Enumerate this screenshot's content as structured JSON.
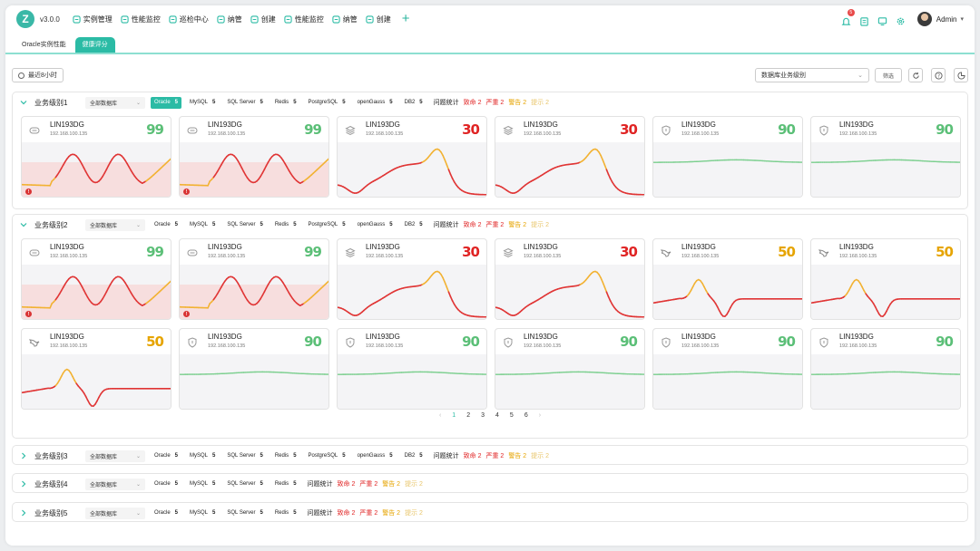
{
  "app": {
    "logo": "Z",
    "version": "v3.0.0"
  },
  "nav": [
    {
      "label": "实例管理",
      "icon": "grid-icon"
    },
    {
      "label": "性能监控",
      "icon": "chart-icon"
    },
    {
      "label": "巡检中心",
      "icon": "inspect-icon"
    },
    {
      "label": "纳管",
      "icon": "cloud-icon"
    },
    {
      "label": "创建",
      "icon": "shield-icon"
    },
    {
      "label": "性能监控",
      "icon": "layers-icon"
    },
    {
      "label": "纳管",
      "icon": "bars-icon"
    },
    {
      "label": "创建",
      "icon": "shield-icon"
    }
  ],
  "header": {
    "notifications": "5",
    "username": "Admin"
  },
  "tabs": [
    {
      "label": "Oracle实例性能"
    },
    {
      "label": "健康评分"
    }
  ],
  "filters": {
    "time_range": "最近8小时",
    "level_select": "数据库业务级别",
    "filter_button": "筛选"
  },
  "colors": {
    "accent": "#2bbba5",
    "good": "#5bbf77",
    "warn": "#e6a400",
    "bad": "#e02424"
  },
  "groups": [
    {
      "title": "业务级别1",
      "db_select": "全部数据库",
      "tags": [
        {
          "name": "Oracle",
          "count": "5"
        },
        {
          "name": "MySQL",
          "count": "5"
        },
        {
          "name": "SQL Server",
          "count": "5"
        },
        {
          "name": "Redis",
          "count": "5"
        },
        {
          "name": "PostgreSQL",
          "count": "5"
        },
        {
          "name": "openGauss",
          "count": "5"
        },
        {
          "name": "DB2",
          "count": "5"
        }
      ],
      "active_tag": 0,
      "stats": {
        "label": "问题统计",
        "fatal": "致命 2",
        "severe": "严重 2",
        "warn": "警告 2",
        "hint": "提示 2"
      }
    },
    {
      "title": "业务级别2",
      "db_select": "全部数据库",
      "tags": [
        {
          "name": "Oracle",
          "count": "5"
        },
        {
          "name": "MySQL",
          "count": "5"
        },
        {
          "name": "SQL Server",
          "count": "5"
        },
        {
          "name": "Redis",
          "count": "5"
        },
        {
          "name": "PostgreSQL",
          "count": "5"
        },
        {
          "name": "openGauss",
          "count": "5"
        },
        {
          "name": "DB2",
          "count": "5"
        }
      ],
      "active_tag": -1,
      "stats": {
        "label": "问题统计",
        "fatal": "致命 2",
        "severe": "严重 2",
        "warn": "警告 2",
        "hint": "提示 2"
      }
    },
    {
      "title": "业务级别3",
      "db_select": "全部数据库",
      "tags": [
        {
          "name": "Oracle",
          "count": "5"
        },
        {
          "name": "MySQL",
          "count": "5"
        },
        {
          "name": "SQL Server",
          "count": "5"
        },
        {
          "name": "Redis",
          "count": "5"
        },
        {
          "name": "PostgreSQL",
          "count": "5"
        },
        {
          "name": "openGauss",
          "count": "5"
        },
        {
          "name": "DB2",
          "count": "5"
        }
      ],
      "active_tag": -1,
      "stats": {
        "label": "问题统计",
        "fatal": "致命 2",
        "severe": "严重 2",
        "warn": "警告 2",
        "hint": "提示 2"
      }
    },
    {
      "title": "业务级别4",
      "db_select": "全部数据库",
      "tags": [
        {
          "name": "Oracle",
          "count": "5"
        },
        {
          "name": "MySQL",
          "count": "5"
        },
        {
          "name": "SQL Server",
          "count": "5"
        },
        {
          "name": "Redis",
          "count": "5"
        }
      ],
      "active_tag": -1,
      "stats": {
        "label": "问题统计",
        "fatal": "致命 2",
        "severe": "严重 2",
        "warn": "警告 2",
        "hint": "提示 2"
      }
    },
    {
      "title": "业务级别5",
      "db_select": "全部数据库",
      "tags": [
        {
          "name": "Oracle",
          "count": "5"
        },
        {
          "name": "MySQL",
          "count": "5"
        },
        {
          "name": "SQL Server",
          "count": "5"
        },
        {
          "name": "Redis",
          "count": "5"
        }
      ],
      "active_tag": -1,
      "stats": {
        "label": "问题统计",
        "fatal": "致命 2",
        "severe": "严重 2",
        "warn": "警告 2",
        "hint": "提示 2"
      }
    }
  ],
  "cards_group1": [
    {
      "name": "LIN193DG",
      "ip": "192.168.100.135",
      "score": "99",
      "icon": "database-icon",
      "curve": "valley",
      "alert": "!"
    },
    {
      "name": "LIN193DG",
      "ip": "192.168.100.135",
      "score": "99",
      "icon": "database-icon",
      "curve": "valley",
      "alert": "!"
    },
    {
      "name": "LIN193DG",
      "ip": "192.168.100.135",
      "score": "30",
      "icon": "layers-icon",
      "curve": "peak"
    },
    {
      "name": "LIN193DG",
      "ip": "192.168.100.135",
      "score": "30",
      "icon": "layers-icon",
      "curve": "peak"
    },
    {
      "name": "LIN193DG",
      "ip": "192.168.100.135",
      "score": "90",
      "icon": "shield-icon",
      "curve": "flat"
    },
    {
      "name": "LIN193DG",
      "ip": "192.168.100.135",
      "score": "90",
      "icon": "shield-icon",
      "curve": "flat"
    }
  ],
  "cards_group2": [
    {
      "name": "LIN193DG",
      "ip": "192.168.100.135",
      "score": "99",
      "icon": "database-icon",
      "curve": "valley",
      "alert": "!"
    },
    {
      "name": "LIN193DG",
      "ip": "192.168.100.135",
      "score": "99",
      "icon": "database-icon",
      "curve": "valley",
      "alert": "!"
    },
    {
      "name": "LIN193DG",
      "ip": "192.168.100.135",
      "score": "30",
      "icon": "layers-icon",
      "curve": "peak"
    },
    {
      "name": "LIN193DG",
      "ip": "192.168.100.135",
      "score": "30",
      "icon": "layers-icon",
      "curve": "peak"
    },
    {
      "name": "LIN193DG",
      "ip": "192.168.100.135",
      "score": "50",
      "icon": "bird-icon",
      "curve": "wave"
    },
    {
      "name": "LIN193DG",
      "ip": "192.168.100.135",
      "score": "50",
      "icon": "bird-icon",
      "curve": "wave"
    },
    {
      "name": "LIN193DG",
      "ip": "192.168.100.135",
      "score": "50",
      "icon": "bird-icon",
      "curve": "wave"
    },
    {
      "name": "LIN193DG",
      "ip": "192.168.100.135",
      "score": "90",
      "icon": "shield-icon",
      "curve": "flat"
    },
    {
      "name": "LIN193DG",
      "ip": "192.168.100.135",
      "score": "90",
      "icon": "shield-icon",
      "curve": "flat"
    },
    {
      "name": "LIN193DG",
      "ip": "192.168.100.135",
      "score": "90",
      "icon": "shield-icon",
      "curve": "flat"
    },
    {
      "name": "LIN193DG",
      "ip": "192.168.100.135",
      "score": "90",
      "icon": "shield-icon",
      "curve": "flat"
    },
    {
      "name": "LIN193DG",
      "ip": "192.168.100.135",
      "score": "90",
      "icon": "shield-icon",
      "curve": "flat"
    }
  ],
  "pagination": {
    "prev": "‹",
    "pages": [
      "1",
      "2",
      "3",
      "4",
      "5",
      "6"
    ],
    "current": 0,
    "next": "›"
  }
}
